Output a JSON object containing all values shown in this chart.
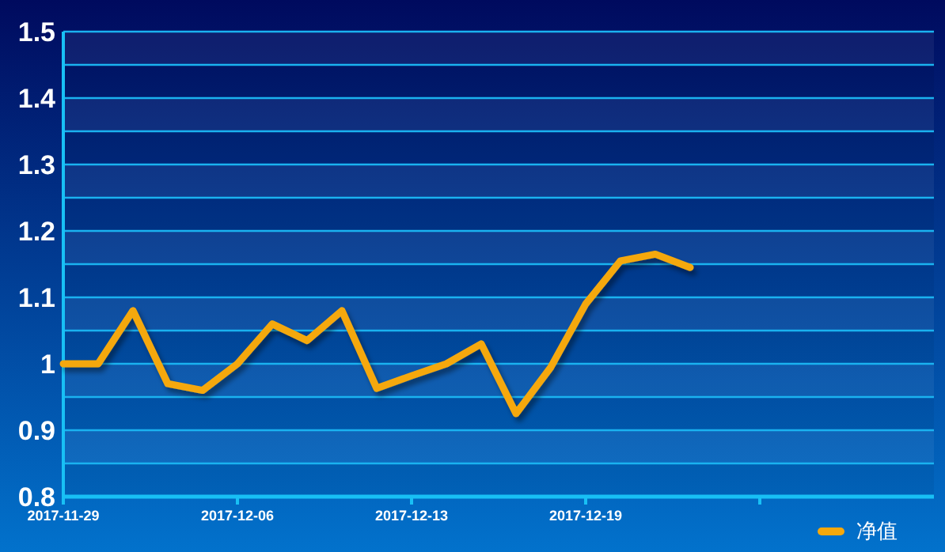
{
  "chart_data": {
    "type": "line",
    "categories": [
      "2017-11-29",
      null,
      null,
      null,
      null,
      "2017-12-06",
      null,
      null,
      null,
      null,
      "2017-12-13",
      null,
      null,
      null,
      null,
      "2017-12-19",
      null,
      null,
      null,
      null,
      null,
      null,
      null,
      null,
      null
    ],
    "series": [
      {
        "name": "净值",
        "color": "#f5a80c",
        "values": [
          1.0,
          1.0,
          1.08,
          0.97,
          0.96,
          1.0,
          1.06,
          1.035,
          1.08,
          0.963,
          0.982,
          1.0,
          1.03,
          0.925,
          0.995,
          1.09,
          1.155,
          1.165,
          1.145,
          null,
          null,
          null,
          null,
          null,
          null
        ]
      }
    ],
    "ylim": [
      0.8,
      1.5
    ],
    "yticks": [
      0.8,
      {
        "value": 0.85,
        "label": null
      },
      0.9,
      {
        "value": 0.95,
        "label": null
      },
      1,
      {
        "value": 1.05,
        "label": null
      },
      1.1,
      {
        "value": 1.15,
        "label": null
      },
      1.2,
      {
        "value": 1.25,
        "label": null
      },
      1.3,
      {
        "value": 1.35,
        "label": null
      },
      1.4,
      {
        "value": 1.45,
        "label": null
      },
      1.5
    ],
    "grid": "y",
    "legend": "bottom right",
    "marker": "none",
    "line_style": "solid"
  }
}
